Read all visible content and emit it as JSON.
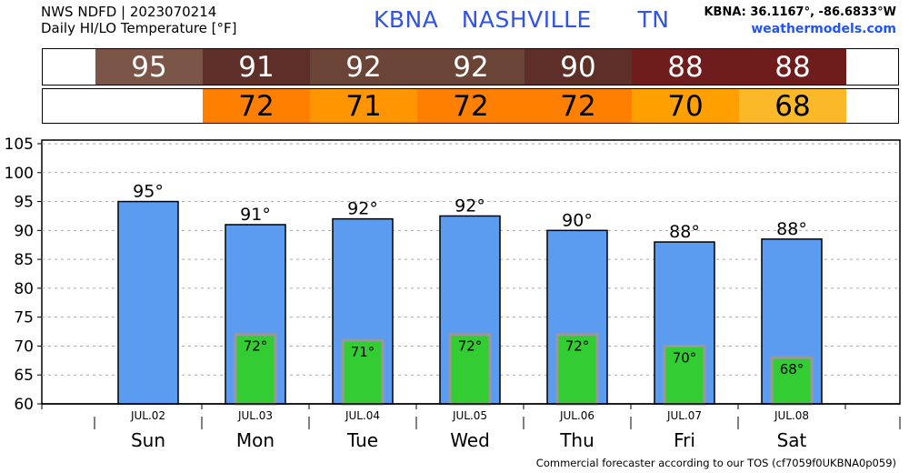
{
  "header": {
    "line1": "NWS NDFD | 2023070214",
    "line2": "Daily HI/LO Temperature [°F]",
    "station": "KBNA   NASHVILLE      TN",
    "coords": "KBNA: 36.1167°, -86.6833°W",
    "site": "weathermodels.com"
  },
  "footer": "Commercial forecaster according to our TOS (cf7059f0UKBNA0p059)",
  "hi_strip": [
    {
      "value": "95",
      "color": "#7b5648"
    },
    {
      "value": "91",
      "color": "#5e2e28"
    },
    {
      "value": "92",
      "color": "#6a4537"
    },
    {
      "value": "92",
      "color": "#6a4537"
    },
    {
      "value": "90",
      "color": "#5e2e28"
    },
    {
      "value": "88",
      "color": "#6e1c1c"
    },
    {
      "value": "88",
      "color": "#6e1c1c"
    }
  ],
  "lo_strip": [
    {
      "value": "",
      "color": "#ffffff"
    },
    {
      "value": "72",
      "color": "#ff8000"
    },
    {
      "value": "71",
      "color": "#ff9500"
    },
    {
      "value": "72",
      "color": "#ff8000"
    },
    {
      "value": "72",
      "color": "#ff8000"
    },
    {
      "value": "70",
      "color": "#ffa000"
    },
    {
      "value": "68",
      "color": "#fbb829"
    }
  ],
  "chart_data": {
    "type": "bar",
    "categories": [
      "Sun",
      "Mon",
      "Tue",
      "Wed",
      "Thu",
      "Fri",
      "Sat"
    ],
    "dates": [
      "JUL.02",
      "JUL.03",
      "JUL.04",
      "JUL.05",
      "JUL.06",
      "JUL.07",
      "JUL.08"
    ],
    "series": [
      {
        "values": [
          95,
          91,
          92,
          92.5,
          90,
          88,
          88.5
        ],
        "color": "#5b9cf0"
      },
      {
        "values": [
          null,
          72,
          71,
          72,
          72,
          70,
          68
        ],
        "color": "#33cc33"
      }
    ],
    "hi_labels": [
      "95°",
      "91°",
      "92°",
      "92°",
      "90°",
      "88°",
      "88°"
    ],
    "lo_labels": [
      "",
      "72°",
      "71°",
      "72°",
      "72°",
      "70°",
      "68°"
    ],
    "ylim": [
      60,
      105
    ],
    "yticks": [
      60,
      65,
      70,
      75,
      80,
      85,
      90,
      95,
      100,
      105
    ],
    "grid": true,
    "xlabel": "",
    "ylabel": ""
  }
}
